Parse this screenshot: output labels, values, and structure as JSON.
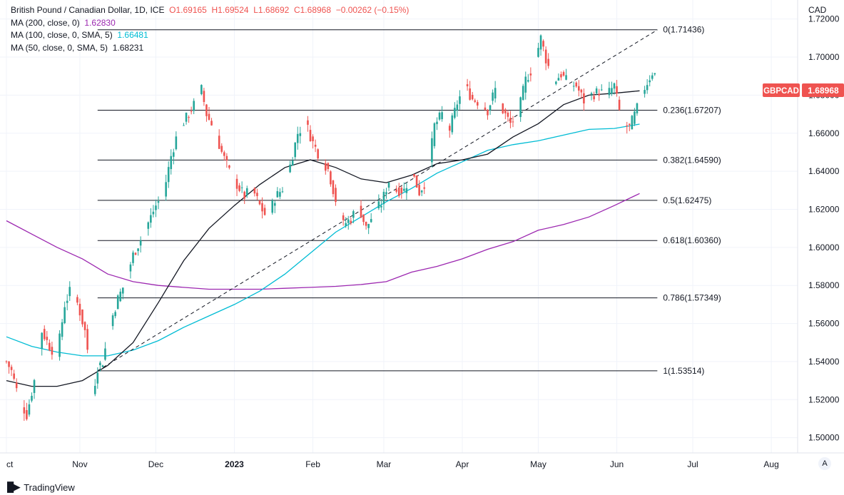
{
  "header": {
    "symbol": "British Pound / Canadian Dollar, 1D, ICE",
    "open": "O1.69165",
    "high": "H1.69524",
    "low": "L1.68692",
    "close": "C1.68968",
    "change": "−0.00262 (−0.15%)"
  },
  "legend": {
    "ma200_label": "MA (200, close, 0)",
    "ma200_value": "1.62830",
    "ma100_label": "MA (100, close, 0, SMA, 5)",
    "ma100_value": "1.66481",
    "ma50_label": "MA (50, close, 0, SMA, 5)",
    "ma50_value": "1.68231"
  },
  "footer": {
    "brand": "TradingView"
  },
  "auto_button": "A",
  "colors": {
    "up": "#26a69a",
    "down": "#ef5350",
    "ma200": "#9c27b0",
    "ma100": "#00bcd4",
    "ma50": "#131722",
    "fib": "#131722",
    "grid": "#f0f3fa"
  },
  "chart_data": {
    "type": "candlestick",
    "title": "British Pound / Canadian Dollar, 1D, ICE",
    "currency": "CAD",
    "ylim": [
      1.492,
      1.73
    ],
    "y_ticks": [
      "1.72000",
      "1.70000",
      "1.68000",
      "1.66000",
      "1.64000",
      "1.62000",
      "1.60000",
      "1.58000",
      "1.56000",
      "1.54000",
      "1.52000",
      "1.50000"
    ],
    "x_ticks": [
      "ct",
      "Nov",
      "Dec",
      "2023",
      "Feb",
      "Mar",
      "Apr",
      "May",
      "Jun",
      "Jul",
      "Aug"
    ],
    "x_tick_days": [
      0,
      29,
      59,
      90,
      121,
      149,
      180,
      210,
      241,
      271,
      302
    ],
    "x_range_days": [
      0,
      305
    ],
    "last_price_label": "GBPCAD",
    "last_price": "1.68968",
    "fib_levels": [
      {
        "label": "0(1.71436)",
        "value": 1.71436
      },
      {
        "label": "0.236(1.67207)",
        "value": 1.67207
      },
      {
        "label": "0.382(1.64590)",
        "value": 1.6459
      },
      {
        "label": "0.5(1.62475)",
        "value": 1.62475
      },
      {
        "label": "0.618(1.60360)",
        "value": 1.6036
      },
      {
        "label": "0.786(1.57349)",
        "value": 1.57349
      },
      {
        "label": "1(1.53514)",
        "value": 1.53514
      }
    ],
    "fib_day_range": [
      36,
      257
    ],
    "trendline": {
      "from": [
        36,
        1.5352
      ],
      "to": [
        257,
        1.7143
      ]
    },
    "ma200": [
      [
        0,
        1.614
      ],
      [
        10,
        1.607
      ],
      [
        20,
        1.6
      ],
      [
        30,
        1.594
      ],
      [
        40,
        1.586
      ],
      [
        50,
        1.582
      ],
      [
        60,
        1.58
      ],
      [
        70,
        1.579
      ],
      [
        80,
        1.578
      ],
      [
        90,
        1.578
      ],
      [
        100,
        1.578
      ],
      [
        110,
        1.5785
      ],
      [
        120,
        1.579
      ],
      [
        130,
        1.5795
      ],
      [
        140,
        1.5805
      ],
      [
        150,
        1.582
      ],
      [
        160,
        1.587
      ],
      [
        170,
        1.59
      ],
      [
        180,
        1.594
      ],
      [
        190,
        1.599
      ],
      [
        200,
        1.603
      ],
      [
        210,
        1.609
      ],
      [
        220,
        1.612
      ],
      [
        230,
        1.616
      ],
      [
        240,
        1.622
      ],
      [
        250,
        1.6283
      ]
    ],
    "ma100": [
      [
        0,
        1.553
      ],
      [
        10,
        1.548
      ],
      [
        20,
        1.545
      ],
      [
        30,
        1.543
      ],
      [
        40,
        1.543
      ],
      [
        50,
        1.546
      ],
      [
        60,
        1.551
      ],
      [
        70,
        1.558
      ],
      [
        80,
        1.564
      ],
      [
        90,
        1.57
      ],
      [
        100,
        1.577
      ],
      [
        110,
        1.586
      ],
      [
        120,
        1.597
      ],
      [
        130,
        1.608
      ],
      [
        140,
        1.616
      ],
      [
        150,
        1.624
      ],
      [
        160,
        1.631
      ],
      [
        170,
        1.639
      ],
      [
        180,
        1.645
      ],
      [
        190,
        1.651
      ],
      [
        200,
        1.654
      ],
      [
        210,
        1.656
      ],
      [
        220,
        1.659
      ],
      [
        230,
        1.662
      ],
      [
        240,
        1.6625
      ],
      [
        250,
        1.6648
      ]
    ],
    "ma50": [
      [
        0,
        1.53
      ],
      [
        10,
        1.527
      ],
      [
        20,
        1.527
      ],
      [
        30,
        1.53
      ],
      [
        40,
        1.538
      ],
      [
        50,
        1.55
      ],
      [
        60,
        1.571
      ],
      [
        70,
        1.593
      ],
      [
        80,
        1.61
      ],
      [
        90,
        1.622
      ],
      [
        100,
        1.633
      ],
      [
        110,
        1.642
      ],
      [
        120,
        1.646
      ],
      [
        130,
        1.642
      ],
      [
        140,
        1.636
      ],
      [
        150,
        1.634
      ],
      [
        160,
        1.638
      ],
      [
        170,
        1.644
      ],
      [
        180,
        1.646
      ],
      [
        190,
        1.649
      ],
      [
        200,
        1.658
      ],
      [
        210,
        1.665
      ],
      [
        220,
        1.675
      ],
      [
        230,
        1.68
      ],
      [
        240,
        1.681
      ],
      [
        250,
        1.6823
      ]
    ],
    "price_path": [
      [
        0,
        1.54
      ],
      [
        2,
        1.535
      ],
      [
        5,
        1.52
      ],
      [
        8,
        1.512
      ],
      [
        11,
        1.53
      ],
      [
        14,
        1.556
      ],
      [
        17,
        1.548
      ],
      [
        20,
        1.543
      ],
      [
        23,
        1.57
      ],
      [
        26,
        1.58
      ],
      [
        29,
        1.566
      ],
      [
        31,
        1.556
      ],
      [
        33,
        1.537
      ],
      [
        34,
        1.522
      ],
      [
        36,
        1.537
      ],
      [
        38,
        1.54
      ],
      [
        41,
        1.56
      ],
      [
        44,
        1.573
      ],
      [
        47,
        1.582
      ],
      [
        50,
        1.596
      ],
      [
        53,
        1.604
      ],
      [
        56,
        1.613
      ],
      [
        59,
        1.622
      ],
      [
        62,
        1.628
      ],
      [
        65,
        1.648
      ],
      [
        68,
        1.662
      ],
      [
        71,
        1.668
      ],
      [
        74,
        1.675
      ],
      [
        77,
        1.683
      ],
      [
        79,
        1.67
      ],
      [
        82,
        1.662
      ],
      [
        85,
        1.65
      ],
      [
        88,
        1.64
      ],
      [
        91,
        1.633
      ],
      [
        94,
        1.627
      ],
      [
        97,
        1.631
      ],
      [
        100,
        1.622
      ],
      [
        103,
        1.615
      ],
      [
        106,
        1.626
      ],
      [
        109,
        1.631
      ],
      [
        112,
        1.643
      ],
      [
        115,
        1.66
      ],
      [
        118,
        1.666
      ],
      [
        121,
        1.655
      ],
      [
        124,
        1.647
      ],
      [
        127,
        1.641
      ],
      [
        130,
        1.625
      ],
      [
        133,
        1.612
      ],
      [
        136,
        1.615
      ],
      [
        139,
        1.622
      ],
      [
        142,
        1.61
      ],
      [
        145,
        1.618
      ],
      [
        148,
        1.623
      ],
      [
        151,
        1.635
      ],
      [
        154,
        1.63
      ],
      [
        157,
        1.63
      ],
      [
        160,
        1.64
      ],
      [
        163,
        1.629
      ],
      [
        166,
        1.636
      ],
      [
        169,
        1.664
      ],
      [
        172,
        1.67
      ],
      [
        175,
        1.662
      ],
      [
        178,
        1.676
      ],
      [
        181,
        1.685
      ],
      [
        184,
        1.678
      ],
      [
        187,
        1.676
      ],
      [
        190,
        1.672
      ],
      [
        193,
        1.683
      ],
      [
        196,
        1.672
      ],
      [
        199,
        1.665
      ],
      [
        202,
        1.67
      ],
      [
        205,
        1.688
      ],
      [
        208,
        1.695
      ],
      [
        211,
        1.71
      ],
      [
        213,
        1.699
      ],
      [
        216,
        1.687
      ],
      [
        219,
        1.691
      ],
      [
        222,
        1.686
      ],
      [
        225,
        1.685
      ],
      [
        228,
        1.677
      ],
      [
        231,
        1.68
      ],
      [
        234,
        1.682
      ],
      [
        237,
        1.68
      ],
      [
        240,
        1.685
      ],
      [
        243,
        1.665
      ],
      [
        246,
        1.663
      ],
      [
        249,
        1.673
      ],
      [
        252,
        1.684
      ],
      [
        255,
        1.692
      ],
      [
        257,
        1.6897
      ]
    ]
  }
}
